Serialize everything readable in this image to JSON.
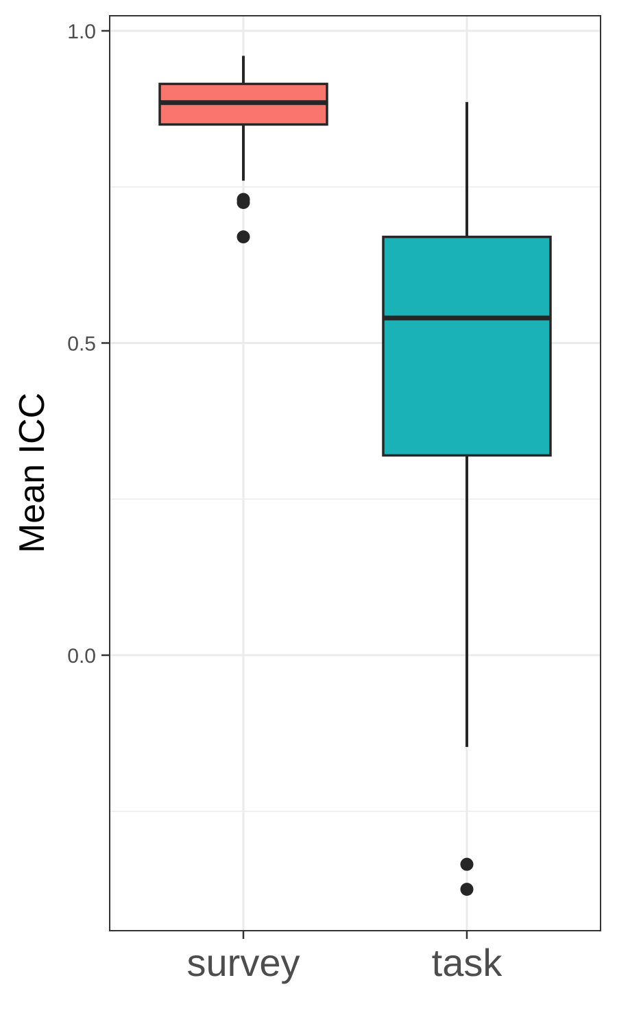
{
  "chart_data": {
    "type": "boxplot",
    "title": "",
    "xlabel": "",
    "ylabel": "Mean ICC",
    "ylim": [
      -0.44,
      1.025
    ],
    "y_ticks": [
      0.0,
      0.5,
      1.0
    ],
    "y_tick_labels": [
      "0.0",
      "0.5",
      "1.0"
    ],
    "y_minor_ticks": [
      -0.25,
      0.25,
      0.75
    ],
    "grid": true,
    "categories": [
      "survey",
      "task"
    ],
    "boxes": [
      {
        "name": "survey",
        "color": "#F8766D",
        "whisker_low": 0.76,
        "q1": 0.85,
        "median": 0.885,
        "q3": 0.915,
        "whisker_high": 0.96,
        "outliers": [
          0.73,
          0.725,
          0.67
        ]
      },
      {
        "name": "task",
        "color": "#1AB2B6",
        "whisker_low": -0.147,
        "q1": 0.32,
        "median": 0.54,
        "q3": 0.67,
        "whisker_high": 0.886,
        "outliers": [
          -0.335,
          -0.375
        ]
      }
    ]
  }
}
